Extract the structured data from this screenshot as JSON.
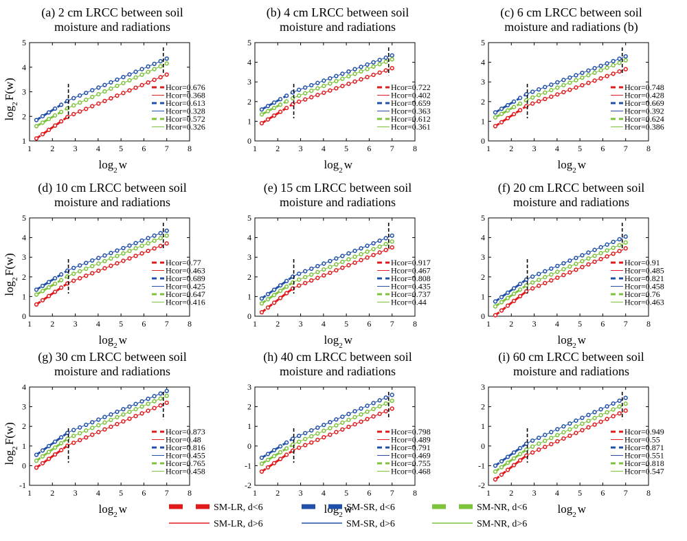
{
  "series_styles": [
    {
      "key": "SM-LR, d<6",
      "color": "#e0191b",
      "style": "dashed-thick"
    },
    {
      "key": "SM-LR, d>6",
      "color": "#e0191b",
      "style": "solid-thin"
    },
    {
      "key": "SM-SR, d<6",
      "color": "#1f4fa8",
      "style": "dashed-thick"
    },
    {
      "key": "SM-SR, d>6",
      "color": "#1f4fa8",
      "style": "solid-thin"
    },
    {
      "key": "SM-NR, d<6",
      "color": "#7cc23a",
      "style": "dashed-thick"
    },
    {
      "key": "SM-NR, d>6",
      "color": "#7cc23a",
      "style": "solid-thin"
    }
  ],
  "figure_legend": {
    "entries": [
      "SM-LR, d<6",
      "SM-LR, d>6",
      "SM-SR, d<6",
      "SM-SR, d>6",
      "SM-NR, d<6",
      "SM-NR, d>6"
    ]
  },
  "chart_data": [
    {
      "type": "scatter",
      "title_line1": "(a) 2 cm LRCC between soil",
      "title_line2": "moisture and radiations",
      "xlabel": "log2 w",
      "ylabel": "log2 F(w)",
      "xlim": [
        1,
        8
      ],
      "ylim": [
        1,
        5
      ],
      "xticks": [
        "1",
        "2",
        "3",
        "4",
        "5",
        "6",
        "7",
        "8"
      ],
      "yticks": [
        "1",
        "2",
        "3",
        "4",
        "5"
      ],
      "crossovers": [
        2.7,
        6.85
      ],
      "series": [
        {
          "name": "SM-LR",
          "start": 1.1,
          "mid": 2.0,
          "end": 3.7
        },
        {
          "name": "SM-SR",
          "start": 1.85,
          "mid": 2.65,
          "end": 4.35
        },
        {
          "name": "SM-NR",
          "start": 1.6,
          "mid": 2.35,
          "end": 4.15
        }
      ],
      "legend": [
        "Hcor=0.676",
        "Hcor=0.368",
        "Hcor=0.613",
        "Hcor=0.328",
        "Hcor=0.572",
        "Hcor=0.326"
      ]
    },
    {
      "type": "scatter",
      "title_line1": "(b) 4 cm LRCC between soil",
      "title_line2": "moisture and radiations",
      "xlabel": "log2 w",
      "ylabel": "",
      "xlim": [
        1,
        8
      ],
      "ylim": [
        0,
        5
      ],
      "xticks": [
        "1",
        "2",
        "3",
        "4",
        "5",
        "6",
        "7",
        "8"
      ],
      "yticks": [
        "0",
        "1",
        "2",
        "3",
        "4",
        "5"
      ],
      "crossovers": [
        2.7,
        6.85
      ],
      "series": [
        {
          "name": "SM-LR",
          "start": 0.9,
          "mid": 1.9,
          "end": 3.7
        },
        {
          "name": "SM-SR",
          "start": 1.6,
          "mid": 2.5,
          "end": 4.35
        },
        {
          "name": "SM-NR",
          "start": 1.35,
          "mid": 2.2,
          "end": 4.15
        }
      ],
      "legend": [
        "Hcor=0.722",
        "Hcor=0.402",
        "Hcor=0.659",
        "Hcor=0.363",
        "Hcor=0.612",
        "Hcor=0.361"
      ]
    },
    {
      "type": "scatter",
      "title_line1": "(c) 6 cm LRCC between soil",
      "title_line2": "moisture and radiations (b)",
      "xlabel": "log2 w",
      "ylabel": "",
      "xlim": [
        1,
        8
      ],
      "ylim": [
        0,
        5
      ],
      "xticks": [
        "1",
        "2",
        "3",
        "4",
        "5",
        "6",
        "7",
        "8"
      ],
      "yticks": [
        "0",
        "1",
        "2",
        "3",
        "4",
        "5"
      ],
      "crossovers": [
        2.7,
        6.85
      ],
      "series": [
        {
          "name": "SM-LR",
          "start": 0.75,
          "mid": 1.8,
          "end": 3.65
        },
        {
          "name": "SM-SR",
          "start": 1.45,
          "mid": 2.4,
          "end": 4.3
        },
        {
          "name": "SM-NR",
          "start": 1.2,
          "mid": 2.1,
          "end": 4.1
        }
      ],
      "legend": [
        "Hcor=0.748",
        "Hcor=0.428",
        "Hcor=0.669",
        "Hcor=0.392",
        "Hcor=0.624",
        "Hcor=0.386"
      ]
    },
    {
      "type": "scatter",
      "title_line1": "(d) 10 cm LRCC between soil",
      "title_line2": "moisture and radiations",
      "xlabel": "log2 w",
      "ylabel": "log2 F(w)",
      "xlim": [
        1,
        8
      ],
      "ylim": [
        0,
        5
      ],
      "xticks": [
        "1",
        "2",
        "3",
        "4",
        "5",
        "6",
        "7",
        "8"
      ],
      "yticks": [
        "0",
        "1",
        "2",
        "3",
        "4",
        "5"
      ],
      "crossovers": [
        2.7,
        6.85
      ],
      "series": [
        {
          "name": "SM-LR",
          "start": 0.6,
          "mid": 1.7,
          "end": 3.7
        },
        {
          "name": "SM-SR",
          "start": 1.35,
          "mid": 2.35,
          "end": 4.35
        },
        {
          "name": "SM-NR",
          "start": 1.1,
          "mid": 2.05,
          "end": 4.1
        }
      ],
      "legend": [
        "Hcor=0.77",
        "Hcor=0.463",
        "Hcor=0.689",
        "Hcor=0.425",
        "Hcor=0.647",
        "Hcor=0.416"
      ]
    },
    {
      "type": "scatter",
      "title_line1": "(e) 15 cm LRCC between soil",
      "title_line2": "moisture and radiations",
      "xlabel": "log2 w",
      "ylabel": "",
      "xlim": [
        1,
        8
      ],
      "ylim": [
        0,
        5
      ],
      "xticks": [
        "1",
        "2",
        "3",
        "4",
        "5",
        "6",
        "7",
        "8"
      ],
      "yticks": [
        "0",
        "1",
        "2",
        "3",
        "4",
        "5"
      ],
      "crossovers": [
        2.7,
        6.85
      ],
      "series": [
        {
          "name": "SM-LR",
          "start": 0.2,
          "mid": 1.45,
          "end": 3.5
        },
        {
          "name": "SM-SR",
          "start": 0.9,
          "mid": 2.05,
          "end": 4.1
        },
        {
          "name": "SM-NR",
          "start": 0.65,
          "mid": 1.75,
          "end": 3.8
        }
      ],
      "legend": [
        "Hcor=0.917",
        "Hcor=0.467",
        "Hcor=0.808",
        "Hcor=0.435",
        "Hcor=0.737",
        "Hcor=0.44"
      ]
    },
    {
      "type": "scatter",
      "title_line1": "(f) 20 cm LRCC between soil",
      "title_line2": "moisture and radiations",
      "xlabel": "log2 w",
      "ylabel": "",
      "xlim": [
        1,
        8
      ],
      "ylim": [
        0,
        5
      ],
      "xticks": [
        "1",
        "2",
        "3",
        "4",
        "5",
        "6",
        "7",
        "8"
      ],
      "yticks": [
        "0",
        "1",
        "2",
        "3",
        "4",
        "5"
      ],
      "crossovers": [
        2.7,
        6.85
      ],
      "series": [
        {
          "name": "SM-LR",
          "start": 0.05,
          "mid": 1.3,
          "end": 3.45
        },
        {
          "name": "SM-SR",
          "start": 0.75,
          "mid": 1.9,
          "end": 4.05
        },
        {
          "name": "SM-NR",
          "start": 0.5,
          "mid": 1.6,
          "end": 3.75
        }
      ],
      "legend": [
        "Hcor=0.91",
        "Hcor=0.485",
        "Hcor=0.821",
        "Hcor=0.458",
        "Hcor=0.76",
        "Hcor=0.463"
      ]
    },
    {
      "type": "scatter",
      "title_line1": "(g) 30 cm LRCC between soil",
      "title_line2": "moisture and radiations",
      "xlabel": "log2 w",
      "ylabel": "log2 F(w)",
      "xlim": [
        1,
        8
      ],
      "ylim": [
        -1,
        4
      ],
      "xticks": [
        "1",
        "2",
        "3",
        "4",
        "5",
        "6",
        "7",
        "8"
      ],
      "yticks": [
        "-1",
        "0",
        "1",
        "2",
        "3",
        "4"
      ],
      "crossovers": [
        2.7,
        6.85
      ],
      "series": [
        {
          "name": "SM-LR",
          "start": -0.1,
          "mid": 1.05,
          "end": 3.2
        },
        {
          "name": "SM-SR",
          "start": 0.55,
          "mid": 1.7,
          "end": 3.8
        },
        {
          "name": "SM-NR",
          "start": 0.25,
          "mid": 1.4,
          "end": 3.55
        }
      ],
      "legend": [
        "Hcor=0.873",
        "Hcor=0.48",
        "Hcor=0.816",
        "Hcor=0.455",
        "Hcor=0.765",
        "Hcor=0.458"
      ]
    },
    {
      "type": "scatter",
      "title_line1": "(h) 40 cm LRCC between soil",
      "title_line2": "moisture and radiations",
      "xlabel": "log2 w",
      "ylabel": "",
      "xlim": [
        1,
        8
      ],
      "ylim": [
        -2,
        3
      ],
      "xticks": [
        "1",
        "2",
        "3",
        "4",
        "5",
        "6",
        "7",
        "8"
      ],
      "yticks": [
        "-2",
        "-1",
        "0",
        "1",
        "2",
        "3"
      ],
      "crossovers": [
        2.7,
        6.85
      ],
      "series": [
        {
          "name": "SM-LR",
          "start": -1.3,
          "mid": -0.2,
          "end": 1.9
        },
        {
          "name": "SM-SR",
          "start": -0.6,
          "mid": 0.4,
          "end": 2.6
        },
        {
          "name": "SM-NR",
          "start": -0.9,
          "mid": 0.1,
          "end": 2.3
        }
      ],
      "legend": [
        "Hcor=0.798",
        "Hcor=0.489",
        "Hcor=0.791",
        "Hcor=0.469",
        "Hcor=0.755",
        "Hcor=0.468"
      ]
    },
    {
      "type": "scatter",
      "title_line1": "(i) 60 cm LRCC between soil",
      "title_line2": "moisture and radiations",
      "xlabel": "log2 w",
      "ylabel": "",
      "xlim": [
        1,
        8
      ],
      "ylim": [
        -2,
        3
      ],
      "xticks": [
        "1",
        "2",
        "3",
        "4",
        "5",
        "6",
        "7",
        "8"
      ],
      "yticks": [
        "-2",
        "-1",
        "0",
        "1",
        "2",
        "3"
      ],
      "crossovers": [
        2.7,
        6.85
      ],
      "series": [
        {
          "name": "SM-LR",
          "start": -1.7,
          "mid": -0.45,
          "end": 1.8
        },
        {
          "name": "SM-SR",
          "start": -1.0,
          "mid": 0.15,
          "end": 2.45
        },
        {
          "name": "SM-NR",
          "start": -1.3,
          "mid": -0.15,
          "end": 2.15
        }
      ],
      "legend": [
        "Hcor=0.949",
        "Hcor=0.55",
        "Hcor=0.871",
        "Hcor=0.551",
        "Hcor=0.818",
        "Hcor=0.547"
      ]
    }
  ]
}
